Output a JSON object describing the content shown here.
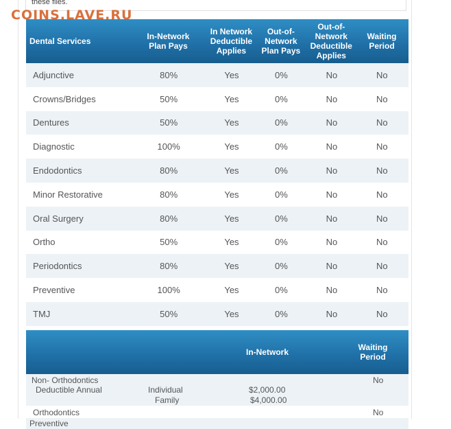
{
  "watermark": "COINS.LAVE.RU",
  "note": "these files.",
  "table": {
    "headers": [
      "Dental Services",
      "In-Network Plan Pays",
      "In Network Deductible Applies",
      "Out-of-Network Plan Pays",
      "Out-of-Network Deductible Applies",
      "Waiting Period"
    ],
    "rows": [
      [
        "Adjunctive",
        "80%",
        "Yes",
        "0%",
        "No",
        "No"
      ],
      [
        "Crowns/Bridges",
        "50%",
        "Yes",
        "0%",
        "No",
        "No"
      ],
      [
        "Dentures",
        "50%",
        "Yes",
        "0%",
        "No",
        "No"
      ],
      [
        "Diagnostic",
        "100%",
        "Yes",
        "0%",
        "No",
        "No"
      ],
      [
        "Endodontics",
        "80%",
        "Yes",
        "0%",
        "No",
        "No"
      ],
      [
        "Minor Restorative",
        "80%",
        "Yes",
        "0%",
        "No",
        "No"
      ],
      [
        "Oral Surgery",
        "80%",
        "Yes",
        "0%",
        "No",
        "No"
      ],
      [
        "Ortho",
        "50%",
        "Yes",
        "0%",
        "No",
        "No"
      ],
      [
        "Periodontics",
        "80%",
        "Yes",
        "0%",
        "No",
        "No"
      ],
      [
        "Preventive",
        "100%",
        "Yes",
        "0%",
        "No",
        "No"
      ],
      [
        "TMJ",
        "50%",
        "Yes",
        "0%",
        "No",
        "No"
      ]
    ]
  },
  "deductible": {
    "header_in_network": "In-Network",
    "header_waiting": "Waiting Period",
    "row1_name_line1": "Non- Orthodontics",
    "row1_name_line2": "Deductible  Annual",
    "row1_tier1": "Individual",
    "row1_tier2": "Family",
    "row1_amount1": "$2,000.00",
    "row1_amount2": "$4,000.00",
    "row1_wait": "No",
    "row2_name": "Orthodontics",
    "row2_wait": "No",
    "row3_name": "Preventive"
  },
  "colors": {
    "header_blue": "#1f6fa6",
    "row_alt": "#edf2f6",
    "watermark": "#d9703c"
  }
}
